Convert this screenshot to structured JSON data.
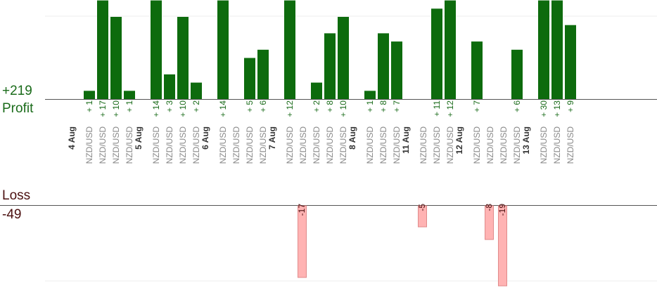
{
  "summary": {
    "profit_total": "+219",
    "profit_label": "Profit",
    "loss_label": "Loss",
    "loss_total": "-49"
  },
  "colors": {
    "profit_bar": "#0d6b0d",
    "profit_text": "#1a6b1a",
    "loss_bar": "#ffb3b3",
    "loss_border": "#e08a8a",
    "loss_text": "#4a0f0f",
    "date_text": "#333333",
    "pair_text": "#888888"
  },
  "chart_data": {
    "type": "bar",
    "scale_note": "profit bars clipped at +12; loss bars clipped at -19",
    "groups": [
      {
        "date": "4 Aug",
        "trades": [
          {
            "pair": "NZD/USD",
            "profit": 1
          },
          {
            "pair": "NZD/USD",
            "profit": 17
          },
          {
            "pair": "NZD/USD",
            "profit": 10
          },
          {
            "pair": "NZD/USD",
            "profit": 1
          }
        ]
      },
      {
        "date": "5 Aug",
        "trades": [
          {
            "pair": "NZD/USD",
            "profit": 14
          },
          {
            "pair": "NZD/USD",
            "profit": 3
          },
          {
            "pair": "NZD/USD",
            "profit": 10
          },
          {
            "pair": "NZD/USD",
            "profit": 2
          }
        ]
      },
      {
        "date": "6 Aug",
        "trades": [
          {
            "pair": "NZD/USD",
            "profit": 14
          },
          {
            "pair": "NZD/USD",
            "profit": null
          },
          {
            "pair": "NZD/USD",
            "profit": 5
          },
          {
            "pair": "NZD/USD",
            "profit": 6
          }
        ]
      },
      {
        "date": "7 Aug",
        "trades": [
          {
            "pair": "NZD/USD",
            "profit": 12
          },
          {
            "pair": "NZD/USD",
            "loss": -17
          },
          {
            "pair": "NZD/USD",
            "profit": 2
          },
          {
            "pair": "NZD/USD",
            "profit": 8
          },
          {
            "pair": "NZD/USD",
            "profit": 10
          }
        ]
      },
      {
        "date": "8 Aug",
        "trades": [
          {
            "pair": "NZD/USD",
            "profit": 1
          },
          {
            "pair": "NZD/USD",
            "profit": 8
          },
          {
            "pair": "NZD/USD",
            "profit": 7
          }
        ]
      },
      {
        "date": "11 Aug",
        "trades": [
          {
            "pair": "NZD/USD",
            "loss": -5
          },
          {
            "pair": "NZD/USD",
            "profit": 11
          },
          {
            "pair": "NZD/USD",
            "profit": 12
          }
        ]
      },
      {
        "date": "12 Aug",
        "trades": [
          {
            "pair": "NZD/USD",
            "profit": 7
          },
          {
            "pair": "NZD/USD",
            "loss": -8
          },
          {
            "pair": "NZD/USD",
            "loss": -19
          },
          {
            "pair": "NZD/USD",
            "profit": 6
          }
        ]
      },
      {
        "date": "13 Aug",
        "trades": [
          {
            "pair": "NZD/USD",
            "profit": 30
          },
          {
            "pair": "NZD/USD",
            "profit": 13
          },
          {
            "pair": "NZD/USD",
            "profit": 9
          }
        ]
      }
    ]
  }
}
